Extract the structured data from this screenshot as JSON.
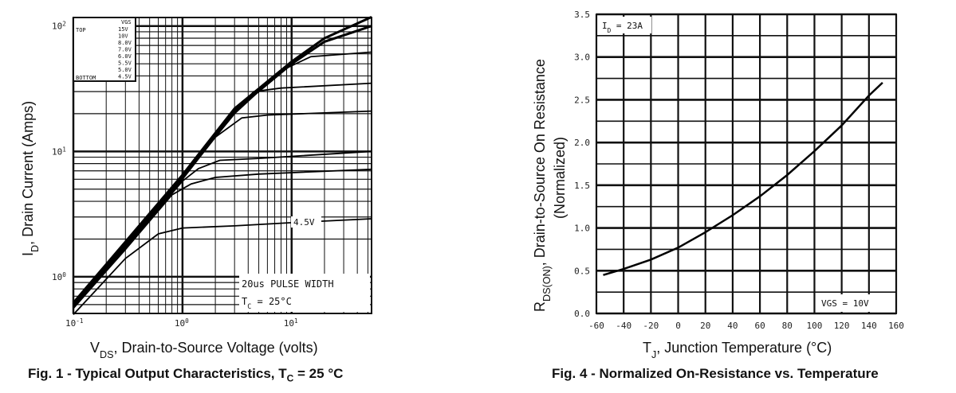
{
  "chart_data": [
    {
      "type": "line",
      "title": "Fig. 1 - Typical Output Characteristics, T",
      "title_sub": "C",
      "title_tail": " = 25 °C",
      "xlabel": "V",
      "xlabel_sub": "DS",
      "xlabel_tail": ", Drain-to-Source Voltage (volts)",
      "ylabel": "I",
      "ylabel_sub": "D",
      "ylabel_tail": ", Drain Current (Amps)",
      "xscale": "log",
      "yscale": "log",
      "xlim": [
        0.1,
        54
      ],
      "ylim": [
        0.51,
        117
      ],
      "xticks": [
        {
          "v": 0.1,
          "b": "10",
          "e": "-1"
        },
        {
          "v": 1,
          "b": "10",
          "e": "0"
        },
        {
          "v": 10,
          "b": "10",
          "e": "1"
        }
      ],
      "yticks": [
        {
          "v": 1,
          "b": "10",
          "e": "0"
        },
        {
          "v": 10,
          "b": "10",
          "e": "1"
        },
        {
          "v": 100,
          "b": "10",
          "e": "2"
        }
      ],
      "grid": true,
      "legend": {
        "placement": "top-left",
        "header": "VGS",
        "top": "TOP",
        "bottom": "BOTTOM",
        "entries": [
          "15V",
          "10V",
          "8.0V",
          "7.0V",
          "6.0V",
          "5.5V",
          "5.0V",
          "4.5V"
        ]
      },
      "annotations": {
        "curve_label": "4.5V",
        "pulse": "20us PULSE WIDTH",
        "tc": "T",
        "tc_sub": "C",
        "tc_tail": " = 25°C"
      },
      "series": [
        {
          "name": "15V",
          "x": [
            0.1,
            0.3,
            1,
            3,
            10,
            20,
            54
          ],
          "y": [
            0.62,
            1.9,
            6.5,
            22,
            52,
            80,
            118
          ]
        },
        {
          "name": "10V",
          "x": [
            0.1,
            0.3,
            1,
            3,
            10,
            20,
            54
          ],
          "y": [
            0.6,
            1.85,
            6.3,
            21,
            50,
            75,
            100
          ]
        },
        {
          "name": "8.0V",
          "x": [
            0.1,
            0.3,
            1,
            3,
            8,
            15,
            54
          ],
          "y": [
            0.6,
            1.8,
            6.2,
            20,
            44,
            57,
            62
          ]
        },
        {
          "name": "7.0V",
          "x": [
            0.1,
            0.3,
            1,
            2.5,
            4.5,
            8,
            54
          ],
          "y": [
            0.59,
            1.8,
            6.1,
            17,
            30,
            32,
            35
          ]
        },
        {
          "name": "6.0V",
          "x": [
            0.1,
            0.3,
            1,
            2,
            3.5,
            6,
            54
          ],
          "y": [
            0.58,
            1.75,
            6,
            13,
            18.5,
            19.5,
            21
          ]
        },
        {
          "name": "5.5V",
          "x": [
            0.1,
            0.3,
            1,
            1.4,
            2.2,
            5,
            54
          ],
          "y": [
            0.57,
            1.7,
            5.8,
            7.3,
            8.5,
            8.8,
            10
          ]
        },
        {
          "name": "5.0V",
          "x": [
            0.1,
            0.3,
            0.8,
            1.2,
            2,
            5,
            54
          ],
          "y": [
            0.56,
            1.65,
            4.5,
            5.5,
            6.2,
            6.6,
            7.2
          ]
        },
        {
          "name": "4.5V",
          "x": [
            0.1,
            0.3,
            0.6,
            1,
            3,
            10,
            54
          ],
          "y": [
            0.5,
            1.4,
            2.2,
            2.45,
            2.55,
            2.7,
            2.9
          ]
        }
      ]
    },
    {
      "type": "line",
      "title": "Fig. 4 - Normalized On-Resistance vs. Temperature",
      "xlabel": "T",
      "xlabel_sub": "J",
      "xlabel_tail": ", Junction Temperature (°C)",
      "ylabel": "R",
      "ylabel_sub": "DS(ON)",
      "ylabel_tail": ", Drain-to-Source On Resistance",
      "ylabel2": "(Normalized)",
      "xlim": [
        -60,
        160
      ],
      "ylim": [
        0,
        3.5
      ],
      "xticks": [
        "-60",
        "-40",
        "-20",
        "0",
        "20",
        "40",
        "60",
        "80",
        "100",
        "120",
        "140",
        "160"
      ],
      "yticks": [
        "0.0",
        "0.5",
        "1.0",
        "1.5",
        "2.0",
        "2.5",
        "3.0",
        "3.5"
      ],
      "grid": true,
      "annotations": {
        "id": "I",
        "id_sub": "D",
        "id_tail": " = 23A",
        "vgs": "VGS = 10V"
      },
      "series": [
        {
          "x": [
            -55,
            -40,
            -20,
            0,
            20,
            40,
            60,
            80,
            100,
            120,
            140,
            150
          ],
          "y": [
            0.45,
            0.52,
            0.63,
            0.77,
            0.95,
            1.15,
            1.37,
            1.62,
            1.9,
            2.2,
            2.55,
            2.7
          ]
        }
      ]
    }
  ]
}
